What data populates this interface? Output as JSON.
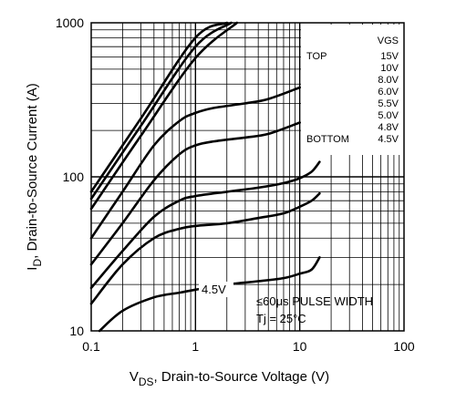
{
  "chart_data": {
    "type": "line",
    "xscale": "log",
    "yscale": "log",
    "xlim": [
      0.1,
      100
    ],
    "ylim": [
      10,
      1000
    ],
    "grid": true,
    "xticks": [
      "0.1",
      "1",
      "10",
      "100"
    ],
    "yticks": [
      "10",
      "100",
      "1000"
    ],
    "xlabel_main": "V",
    "xlabel_sub": "DS",
    "xlabel_rest": ", Drain-to-Source Voltage (V)",
    "ylabel_main": "I",
    "ylabel_sub": "D",
    "ylabel_rest": ", Drain-to-Source Current (A)",
    "legend": {
      "header": "VGS",
      "top_label": "TOP",
      "bottom_label": "BOTTOM",
      "entries": [
        "15V",
        "10V",
        "8.0V",
        "6.0V",
        "5.5V",
        "5.0V",
        "4.8V",
        "4.5V"
      ],
      "placement": "top-right"
    },
    "annotations": {
      "curve_label": "4.5V",
      "pulse_note": "≤60μs PULSE WIDTH",
      "temp_note": "Tj = 25°C"
    },
    "series": [
      {
        "vgs": "15V",
        "x": [
          0.1,
          0.3,
          1,
          2.0
        ],
        "y": [
          80,
          240,
          800,
          1000
        ]
      },
      {
        "vgs": "10V",
        "x": [
          0.1,
          0.3,
          1,
          2.2
        ],
        "y": [
          72,
          215,
          700,
          1000
        ]
      },
      {
        "vgs": "8.0V",
        "x": [
          0.1,
          0.3,
          1,
          2.5
        ],
        "y": [
          62,
          185,
          590,
          1000
        ]
      },
      {
        "vgs": "6.0V",
        "x": [
          0.1,
          0.2,
          0.4,
          0.7,
          1.0,
          1.5,
          3,
          5,
          10
        ],
        "y": [
          40,
          80,
          160,
          230,
          260,
          280,
          300,
          320,
          380
        ]
      },
      {
        "vgs": "5.5V",
        "x": [
          0.1,
          0.2,
          0.4,
          0.7,
          1.0,
          1.5,
          3,
          5,
          10
        ],
        "y": [
          27,
          50,
          95,
          140,
          160,
          170,
          180,
          190,
          225
        ]
      },
      {
        "vgs": "5.0V",
        "x": [
          0.1,
          0.2,
          0.4,
          0.7,
          1.0,
          2,
          4,
          7,
          10,
          13,
          15.5
        ],
        "y": [
          19,
          33,
          55,
          70,
          75,
          80,
          85,
          91,
          98,
          108,
          125
        ]
      },
      {
        "vgs": "4.8V",
        "x": [
          0.1,
          0.2,
          0.4,
          0.7,
          1.0,
          2,
          4,
          7,
          10,
          13,
          15.5
        ],
        "y": [
          15,
          27,
          40,
          46,
          48,
          50,
          54,
          58,
          64,
          70,
          78
        ]
      },
      {
        "vgs": "4.5V",
        "x": [
          0.12,
          0.2,
          0.4,
          0.7,
          1.0,
          2,
          4,
          7,
          10,
          13,
          15.5
        ],
        "y": [
          10,
          13.5,
          16.5,
          17.7,
          18.5,
          20,
          21,
          22,
          23.5,
          25,
          30
        ]
      }
    ]
  }
}
